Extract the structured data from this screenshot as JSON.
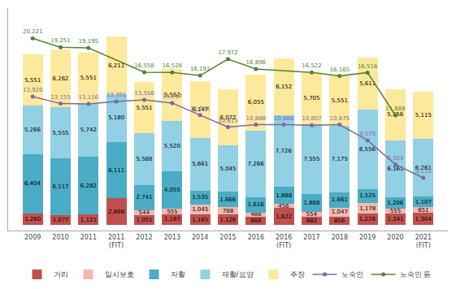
{
  "chart_data": {
    "type": "bar",
    "stacked": true,
    "data_labels": true,
    "tick_labels": "x",
    "grid": false,
    "legend": "lower center",
    "categories": [
      "2009",
      "2010",
      "2011",
      "2011\n(FIT)",
      "2012",
      "2013",
      "2014",
      "2015",
      "2016",
      "2016\n(FIT)",
      "2017",
      "2018",
      "2019",
      "2020",
      "2021\n(FIT)"
    ],
    "ylim": [
      -600,
      23500
    ],
    "yticks": [],
    "series": [
      {
        "name": "거리",
        "type": "bar",
        "color": "#c0504d",
        "values": [
          1260,
          1077,
          1121,
          2888,
          1051,
          1187,
          1165,
          1126,
          888,
          1822,
          882,
          856,
          1226,
          1241,
          1304
        ],
        "value_labels": [
          "1,260",
          "1,077",
          "1,121",
          "2,888",
          "1,051",
          "1,187",
          "1,165",
          "1,126",
          "888",
          "1,822",
          "882",
          "856",
          "1,226",
          "1,241",
          "1,304"
        ]
      },
      {
        "name": "일시보호",
        "type": "bar",
        "color": "#f4b8b0",
        "values": [
          0,
          0,
          0,
          0,
          544,
          555,
          1045,
          788,
          488,
          456,
          554,
          1047,
          1178,
          555,
          651
        ],
        "value_labels": [
          null,
          null,
          null,
          null,
          "544",
          "555",
          "1,045",
          "788",
          "488",
          "456",
          "554",
          "1,047",
          "1,178",
          "555",
          "651"
        ]
      },
      {
        "name": "자활",
        "type": "bar",
        "color": "#4bacc6",
        "values": [
          6404,
          6117,
          6282,
          6111,
          2741,
          4055,
          1535,
          1666,
          1616,
          1888,
          1888,
          1661,
          1525,
          1206,
          1107
        ],
        "value_labels": [
          "6,404",
          "6,117",
          "6,282",
          "6,111",
          "2,741",
          "4,055",
          "1,535",
          "1,666",
          "1,616",
          "1,888",
          "1,888",
          "1,661",
          "1,525",
          "1,206",
          "1,107"
        ]
      },
      {
        "name": "재활/요양",
        "type": "bar",
        "color": "#92d0e4",
        "values": [
          5266,
          5555,
          5742,
          5180,
          5588,
          5520,
          5661,
          5045,
          7266,
          7726,
          7555,
          7175,
          8556,
          6161,
          6261
        ],
        "value_labels": [
          "5,266",
          "5,555",
          "5,742",
          "5,180",
          "5,588",
          "5,520",
          "5,661",
          "5,045",
          "7,266",
          "7,726",
          "7,555",
          "7,175",
          "8,556",
          "6,161",
          "6,261"
        ]
      },
      {
        "name": "주장",
        "type": "bar",
        "color": "#fde99c",
        "values": [
          5551,
          6262,
          5551,
          6211,
          5551,
          5552,
          6147,
          6072,
          6055,
          6152,
          5705,
          5551,
          5611,
          5556,
          5115
        ],
        "value_labels": [
          "5,551",
          "6,262",
          "5,551",
          "6,211",
          "5,551",
          "5,552",
          "6,147",
          "6,072",
          "6,055",
          "6,152",
          "5,705",
          "5,551",
          "5,611",
          "5,556",
          "5,115"
        ]
      },
      {
        "name": "노숙인",
        "type": "line",
        "color": "#7e699e",
        "marker": "circle",
        "line_style": "solid",
        "values": [
          13920,
          13155,
          13116,
          13391,
          13556,
          13217,
          11901,
          10615,
          10888,
          10888,
          10807,
          10875,
          9170,
          6555,
          5115
        ],
        "value_labels": [
          "13,920",
          "13,155",
          "13,116",
          "13,391",
          "13,556",
          "13,217",
          "11,901",
          "10,615",
          "10,888",
          "10,888",
          "10,807",
          "10,875",
          "9,170",
          "6,555",
          "5,115"
        ]
      },
      {
        "name": "노숙인 등",
        "type": "line",
        "color": "#548235",
        "marker": "circle",
        "line_style": "solid",
        "values": [
          20221,
          19251,
          19195,
          null,
          16558,
          16528,
          16191,
          17972,
          16896,
          null,
          16522,
          16165,
          16516,
          11888,
          null
        ],
        "value_labels": [
          "20,221",
          "19,251",
          "19,195",
          null,
          "16,558",
          "16,528",
          "16,191",
          "17,972",
          "16,896",
          null,
          "16,522",
          "16,165",
          "16,516",
          "11,888",
          null
        ]
      }
    ]
  }
}
